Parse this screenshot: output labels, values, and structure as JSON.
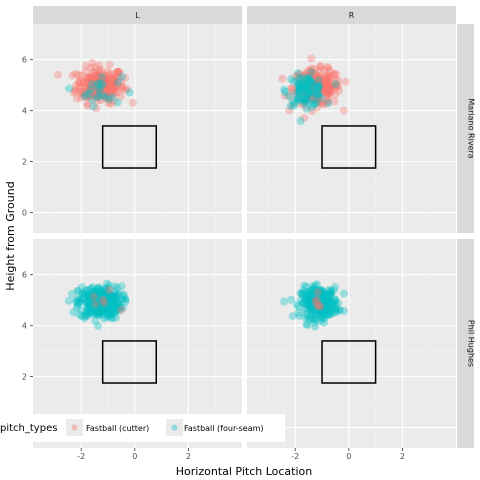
{
  "chart_data": {
    "type": "scatter",
    "facet_columns": [
      "L",
      "R"
    ],
    "facet_rows": [
      "Mariano Rivera",
      "Phil Hughes"
    ],
    "xlabel": "Horizontal Pitch Location",
    "ylabel": "Height from Ground",
    "xlim": [
      -3.8,
      4.0
    ],
    "ylim": [
      -0.8,
      7.4
    ],
    "x_ticks": [
      -2,
      0,
      2
    ],
    "x_tick_labels": [
      "-2",
      "0",
      "2"
    ],
    "y_ticks": [
      0,
      2,
      4,
      6
    ],
    "y_tick_labels": [
      "0",
      "2",
      "4",
      "6"
    ],
    "grid": true,
    "legend": {
      "title": "pitch_types",
      "position": "bottom-left",
      "entries": [
        "Fastball (cutter)",
        "Fastball (four-seam)"
      ]
    },
    "series": [
      {
        "name": "Fastball (cutter)",
        "color": "#F8766D"
      },
      {
        "name": "Fastball (four-seam)",
        "color": "#00BFC4"
      }
    ],
    "strike_zones": {
      "L": {
        "x": [
          -1.2,
          0.8
        ],
        "y": [
          1.75,
          3.4
        ]
      },
      "R": {
        "x": [
          -1.0,
          1.0
        ],
        "y": [
          1.75,
          3.4
        ]
      }
    },
    "clusters": [
      {
        "row": "Mariano Rivera",
        "col": "L",
        "series": "Fastball (cutter)",
        "center": [
          -1.3,
          5.0
        ],
        "spread": [
          0.45,
          0.35
        ],
        "n": 220
      },
      {
        "row": "Mariano Rivera",
        "col": "L",
        "series": "Fastball (four-seam)",
        "center": [
          -1.3,
          4.8
        ],
        "spread": [
          0.4,
          0.3
        ],
        "n": 25
      },
      {
        "row": "Mariano Rivera",
        "col": "R",
        "series": "Fastball (cutter)",
        "center": [
          -1.2,
          4.9
        ],
        "spread": [
          0.45,
          0.35
        ],
        "n": 230
      },
      {
        "row": "Mariano Rivera",
        "col": "R",
        "series": "Fastball (four-seam)",
        "center": [
          -1.6,
          4.8
        ],
        "spread": [
          0.35,
          0.3
        ],
        "n": 90
      },
      {
        "row": "Phil Hughes",
        "col": "L",
        "series": "Fastball (four-seam)",
        "center": [
          -1.3,
          4.9
        ],
        "spread": [
          0.4,
          0.32
        ],
        "n": 320
      },
      {
        "row": "Phil Hughes",
        "col": "L",
        "series": "Fastball (cutter)",
        "center": [
          -1.3,
          4.9
        ],
        "spread": [
          0.35,
          0.3
        ],
        "n": 6
      },
      {
        "row": "Phil Hughes",
        "col": "R",
        "series": "Fastball (four-seam)",
        "center": [
          -1.1,
          4.9
        ],
        "spread": [
          0.35,
          0.3
        ],
        "n": 260
      },
      {
        "row": "Phil Hughes",
        "col": "R",
        "series": "Fastball (cutter)",
        "center": [
          -1.0,
          4.9
        ],
        "spread": [
          0.3,
          0.3
        ],
        "n": 6
      }
    ]
  }
}
